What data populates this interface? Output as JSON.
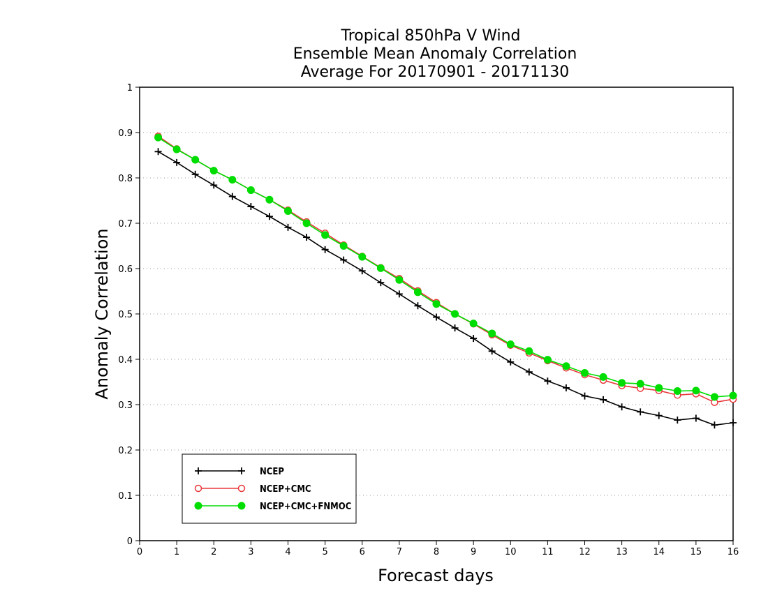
{
  "chart_data": {
    "type": "line",
    "title_lines": [
      "Tropical 850hPa V Wind",
      "Ensemble Mean Anomaly Correlation",
      "Average For 20170901 - 20171130"
    ],
    "xlabel": "Forecast days",
    "ylabel": "Anomaly Correlation",
    "xlim": [
      0,
      16
    ],
    "ylim": [
      0,
      1
    ],
    "xticks": [
      "0",
      "1",
      "2",
      "3",
      "4",
      "5",
      "6",
      "7",
      "8",
      "9",
      "10",
      "11",
      "12",
      "13",
      "14",
      "15",
      "16"
    ],
    "yticks": [
      "0",
      "0.1",
      "0.2",
      "0.3",
      "0.4",
      "0.5",
      "0.6",
      "0.7",
      "0.8",
      "0.9",
      "1"
    ],
    "grid": "horizontal dotted",
    "legend_position": "bottom-left",
    "x": [
      0.5,
      1,
      1.5,
      2,
      2.5,
      3,
      3.5,
      4,
      4.5,
      5,
      5.5,
      6,
      6.5,
      7,
      7.5,
      8,
      8.5,
      9,
      9.5,
      10,
      10.5,
      11,
      11.5,
      12,
      12.5,
      13,
      13.5,
      14,
      14.5,
      15,
      15.5,
      16
    ],
    "series": [
      {
        "name": "NCEP",
        "color": "#000000",
        "marker": "plus",
        "values": [
          0.858,
          0.834,
          0.808,
          0.784,
          0.759,
          0.737,
          0.715,
          0.691,
          0.669,
          0.642,
          0.619,
          0.595,
          0.569,
          0.544,
          0.518,
          0.493,
          0.469,
          0.446,
          0.418,
          0.394,
          0.372,
          0.352,
          0.337,
          0.319,
          0.311,
          0.295,
          0.284,
          0.276,
          0.266,
          0.27,
          0.255,
          0.26
        ]
      },
      {
        "name": "NCEP+CMC",
        "color": "#e8383b",
        "marker": "open-circle",
        "values": [
          0.892,
          0.864,
          0.84,
          0.816,
          0.796,
          0.773,
          0.752,
          0.729,
          0.703,
          0.678,
          0.652,
          0.627,
          0.602,
          0.578,
          0.551,
          0.525,
          0.5,
          0.478,
          0.454,
          0.431,
          0.414,
          0.397,
          0.381,
          0.366,
          0.354,
          0.342,
          0.336,
          0.331,
          0.321,
          0.324,
          0.305,
          0.312
        ]
      },
      {
        "name": "NCEP+CMC+FNMOC",
        "color": "#00dd00",
        "marker": "filled-circle",
        "values": [
          0.889,
          0.863,
          0.84,
          0.816,
          0.796,
          0.773,
          0.752,
          0.727,
          0.7,
          0.674,
          0.65,
          0.626,
          0.601,
          0.575,
          0.548,
          0.522,
          0.5,
          0.479,
          0.457,
          0.433,
          0.418,
          0.399,
          0.385,
          0.37,
          0.361,
          0.348,
          0.346,
          0.337,
          0.33,
          0.331,
          0.317,
          0.32
        ]
      }
    ]
  }
}
